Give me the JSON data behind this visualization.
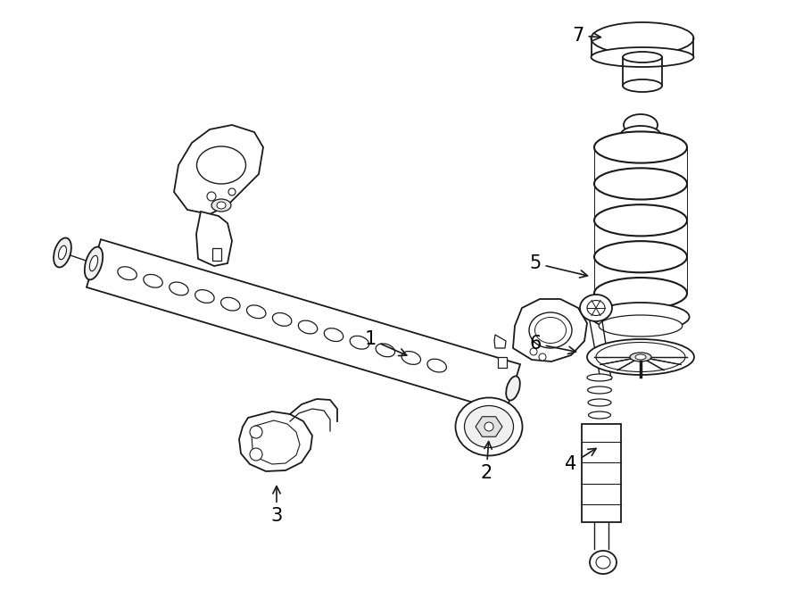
{
  "background_color": "#ffffff",
  "line_color": "#1a1a1a",
  "label_color": "#000000",
  "line_width": 1.3,
  "fig_width": 9.0,
  "fig_height": 6.61,
  "label_fontsize": 15
}
